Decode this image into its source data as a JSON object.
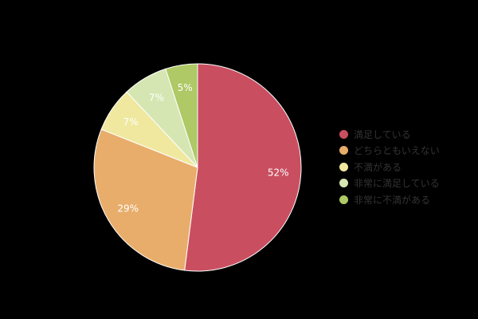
{
  "chart_data": {
    "type": "pie",
    "categories": [
      "満足している",
      "どちらともいえない",
      "不満がある",
      "非常に満足している",
      "非常に不満がある"
    ],
    "values": [
      52,
      29,
      7,
      7,
      5
    ],
    "labels": [
      "52%",
      "29%",
      "7%",
      "7%",
      "5%"
    ],
    "colors": [
      "#c94f60",
      "#e8ad6a",
      "#efe89e",
      "#d6e6b2",
      "#aec965"
    ],
    "legend_position": "right",
    "start": "top",
    "direction": "clockwise"
  }
}
